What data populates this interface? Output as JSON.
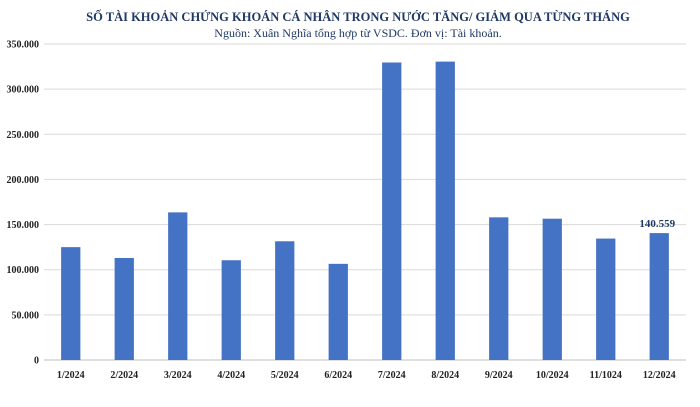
{
  "chart_data": {
    "type": "bar",
    "title": "SỐ TÀI KHOẢN CHỨNG KHOÁN CÁ NHÂN TRONG NƯỚC TĂNG/ GIẢM QUA TỪNG THÁNG",
    "subtitle": "Nguồn: Xuân Nghĩa tổng hợp từ VSDC. Đơn vị: Tài khoản.",
    "categories": [
      "1/2024",
      "2/2024",
      "3/2024",
      "4/2024",
      "5/2024",
      "6/2024",
      "7/2024",
      "8/2024",
      "9/2024",
      "10/2024",
      "11/1024",
      "12/2024"
    ],
    "values": [
      125000,
      113000,
      163500,
      110500,
      131500,
      106500,
      329500,
      330500,
      158000,
      156500,
      134500,
      140559
    ],
    "data_labels": [
      {
        "index": 11,
        "text": "140.559"
      }
    ],
    "yticks": [
      "0",
      "50.000",
      "100.000",
      "150.000",
      "200.000",
      "250.000",
      "300.000",
      "350.000"
    ],
    "ylim": [
      0,
      350000
    ],
    "ytick_step": 50000,
    "grid": true,
    "bar_color": "#4472c4"
  }
}
